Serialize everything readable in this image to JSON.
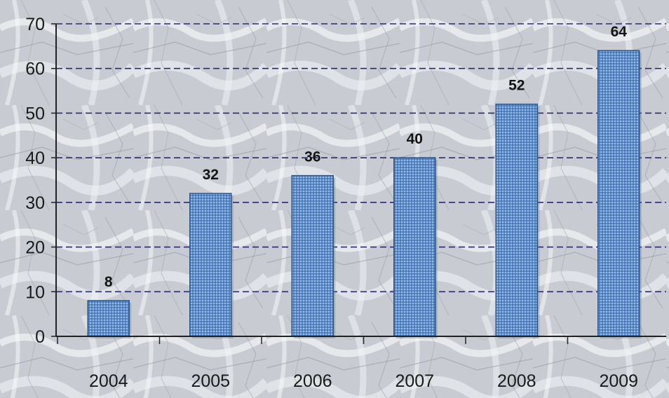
{
  "chart_data": {
    "type": "bar",
    "categories": [
      "2004",
      "2005",
      "2006",
      "2007",
      "2008",
      "2009"
    ],
    "values": [
      8,
      32,
      36,
      40,
      52,
      64
    ],
    "data_labels": [
      "8",
      "32",
      "36",
      "40",
      "52",
      "64"
    ],
    "y_ticks": [
      "0",
      "10",
      "20",
      "30",
      "40",
      "50",
      "60",
      "70"
    ],
    "ylim": [
      0,
      70
    ],
    "grid": true,
    "grid_style": "dashed",
    "legend": "none",
    "title": "",
    "xlabel": "",
    "ylabel": ""
  },
  "colors": {
    "bar_fill": "#5b8cc9",
    "bar_edge": "#2d5687",
    "bar_light": "#a9c7ea",
    "grid_line": "#2a2a6e",
    "axis_line": "#222222",
    "background": "#c9cdd3"
  }
}
